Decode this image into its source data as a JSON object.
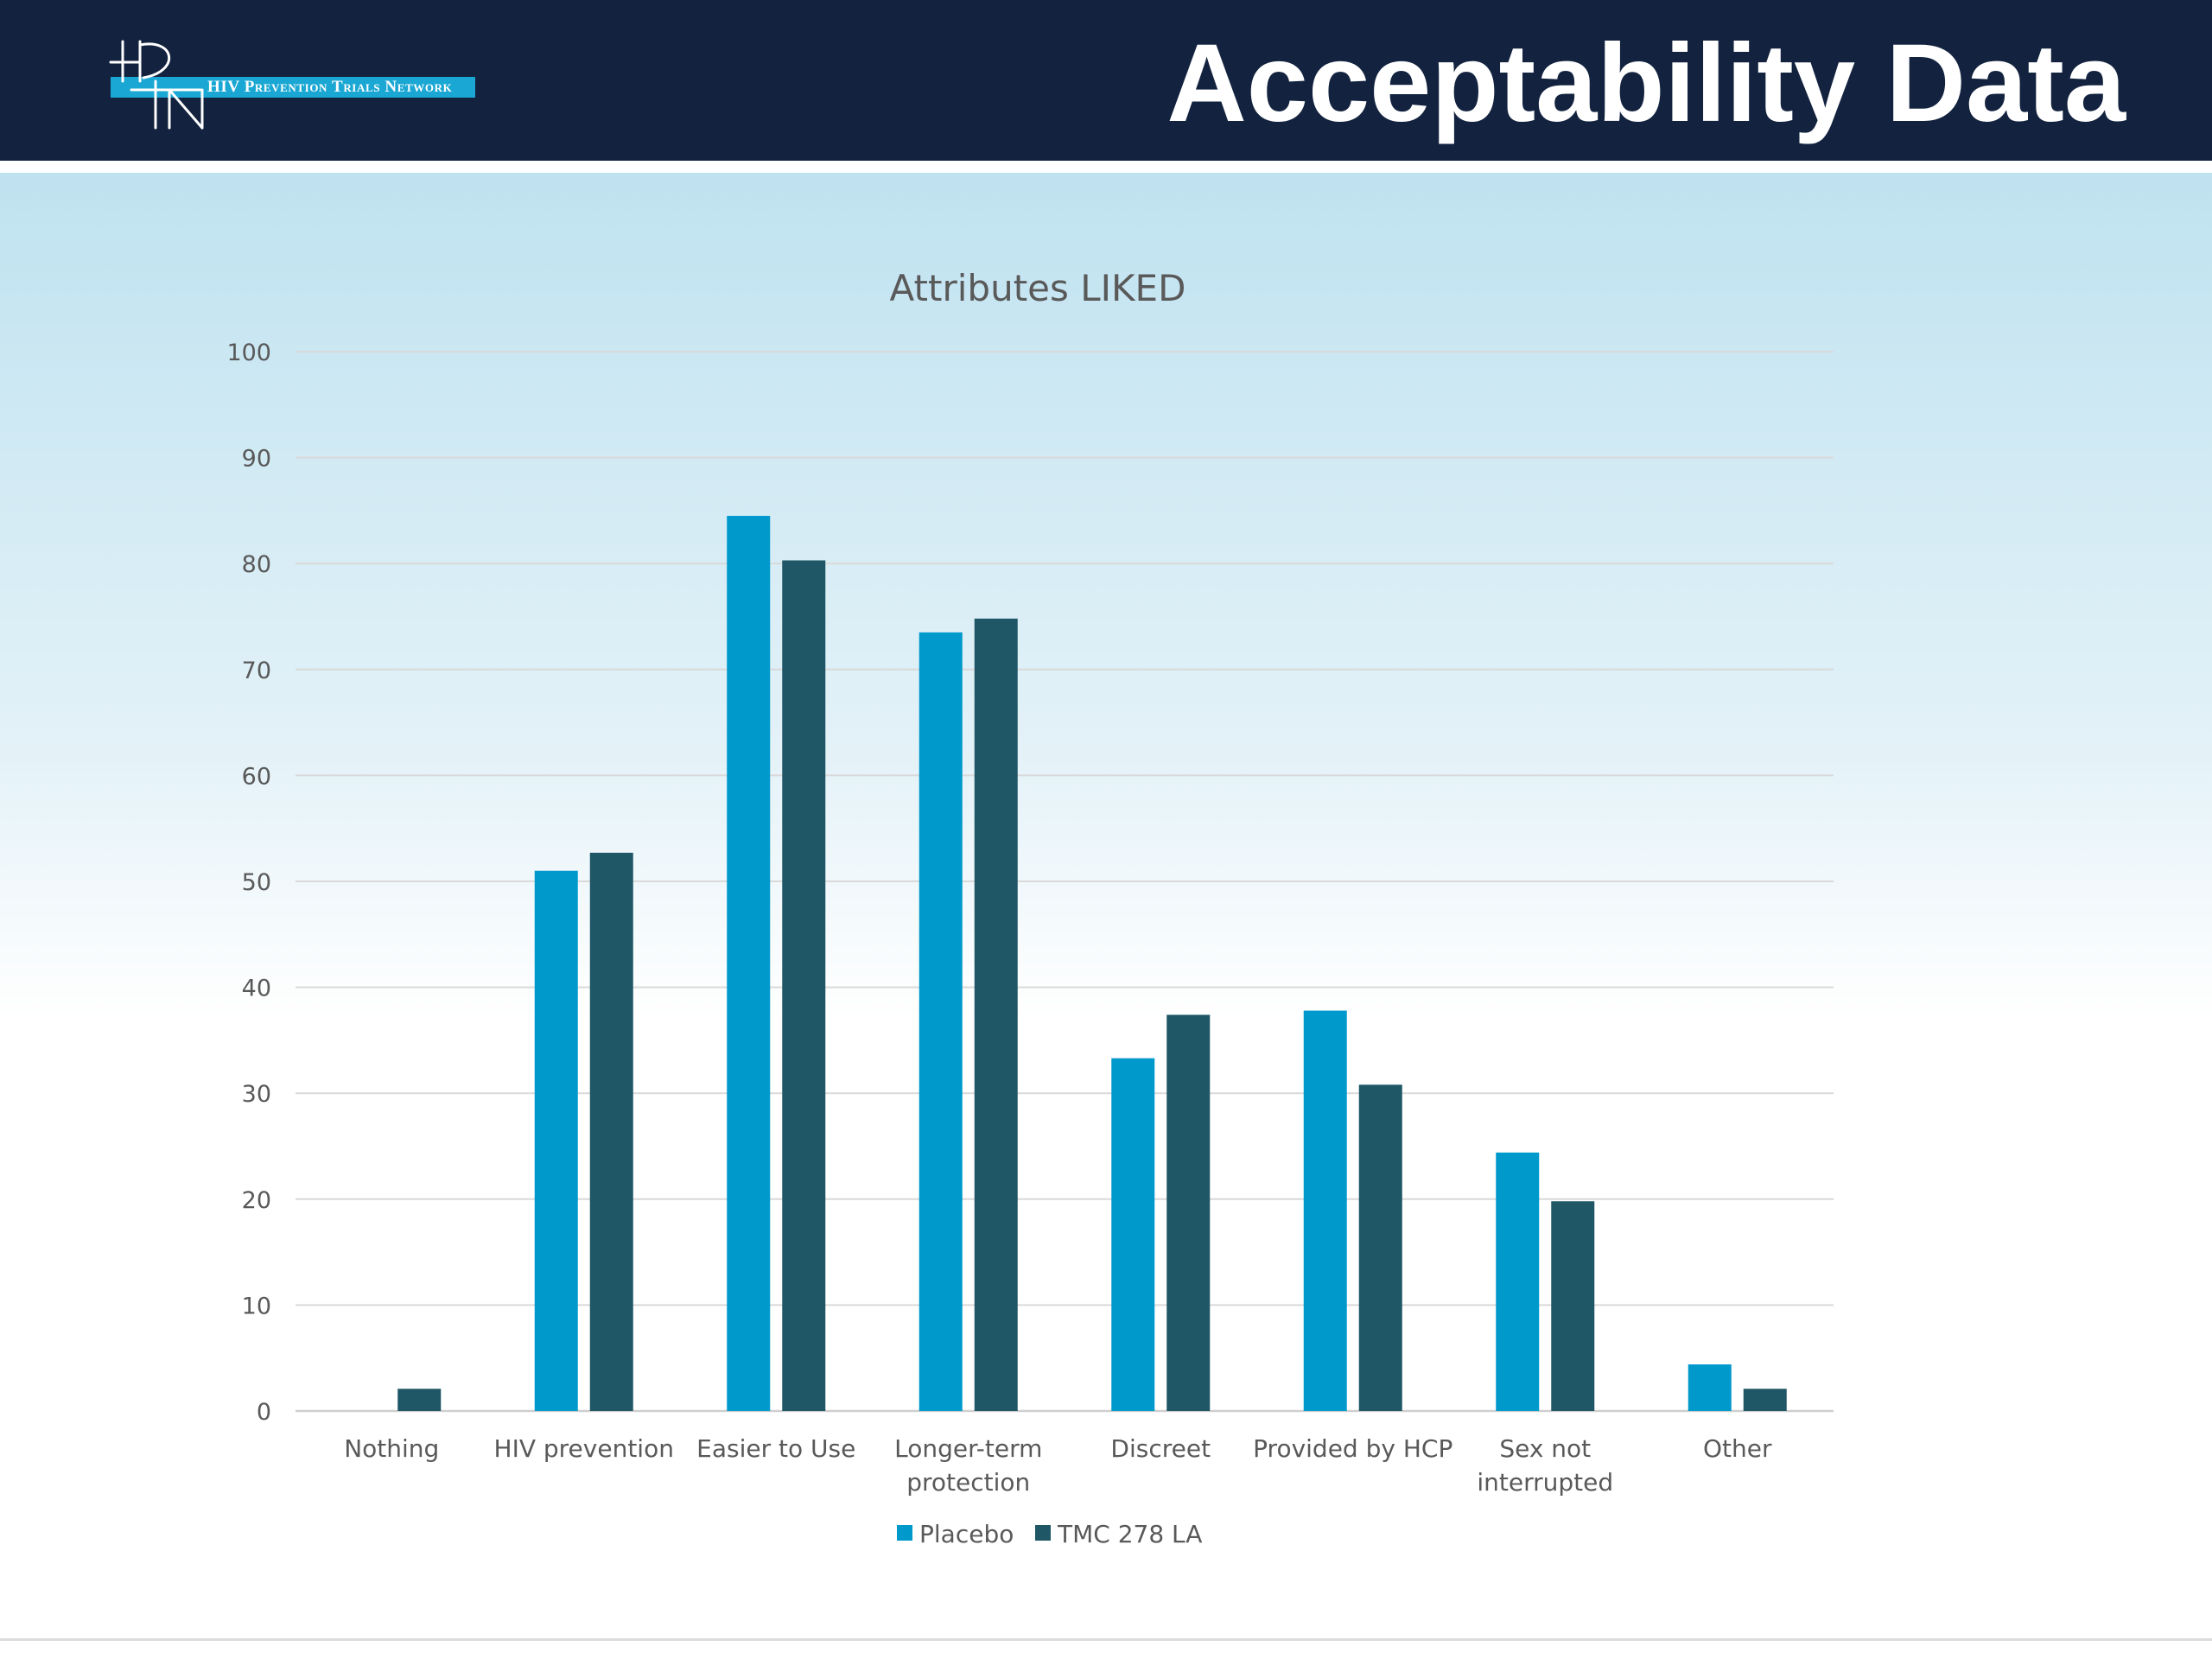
{
  "header": {
    "title": "Acceptability Data",
    "logo_text": "HIV Prevention Trials Network",
    "logo_mark": "HPTN"
  },
  "colors": {
    "header_bg": "#13233f",
    "placebo": "#0099cc",
    "tmc": "#1f5766",
    "logo_bar": "#1aa7d3"
  },
  "chart_data": {
    "type": "bar",
    "title": "Attributes LIKED",
    "categories": [
      [
        "Nothing"
      ],
      [
        "HIV prevention"
      ],
      [
        "Easier to Use"
      ],
      [
        "Longer-term",
        "protection"
      ],
      [
        "Discreet"
      ],
      [
        "Provided by HCP"
      ],
      [
        "Sex not",
        "interrupted"
      ],
      [
        "Other"
      ]
    ],
    "series": [
      {
        "name": "Placebo",
        "values": [
          0,
          51,
          84.5,
          73.5,
          33.3,
          37.8,
          24.4,
          4.4
        ]
      },
      {
        "name": "TMC 278 LA",
        "values": [
          2.1,
          52.7,
          80.3,
          74.8,
          37.4,
          30.8,
          19.8,
          2.1
        ]
      }
    ],
    "ylim": [
      0,
      100
    ],
    "yticks": [
      0,
      10,
      20,
      30,
      40,
      50,
      60,
      70,
      80,
      90,
      100
    ],
    "grid": true,
    "legend_position": "bottom"
  }
}
